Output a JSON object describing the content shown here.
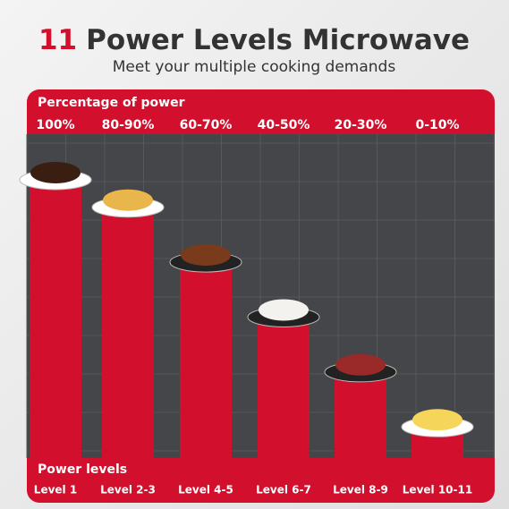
{
  "chart_data": {
    "type": "bar",
    "title_number": "11",
    "title": "Power Levels Microwave",
    "subtitle": "Meet your multiple cooking demands",
    "value_axis_label": "Percentage of power",
    "x_label": "Power levels",
    "categories": [
      "Level 1",
      "Level 2-3",
      "Level 4-5",
      "Level 6-7",
      "Level 8-9",
      "Level 10-11"
    ],
    "values": [
      100,
      90,
      70,
      50,
      30,
      10
    ],
    "value_labels": [
      "100%",
      "80-90%",
      "60-70%",
      "40-50%",
      "20-30%",
      "0-10%"
    ],
    "color": "#d20f2c",
    "ylim": [
      0,
      100
    ]
  }
}
